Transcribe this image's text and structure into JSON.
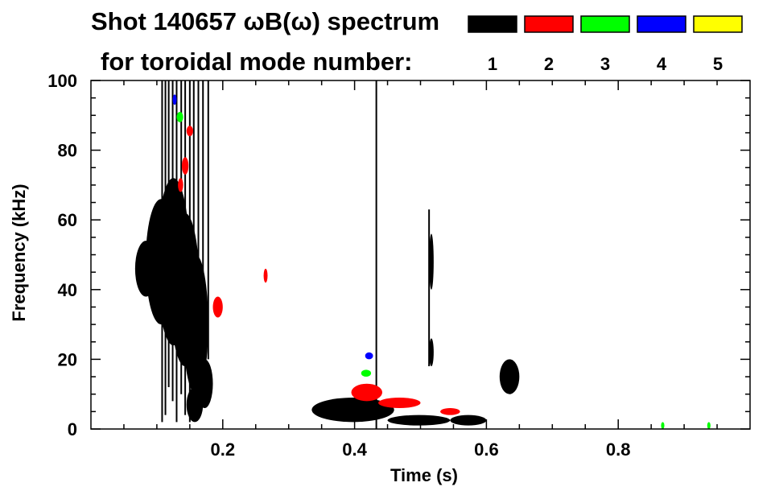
{
  "chart_data": {
    "type": "heatmap",
    "title_line1": "Shot 140657 ωB(ω) spectrum",
    "title_line2": "for toroidal mode number:",
    "xlabel": "Time (s)",
    "ylabel": "Frequency (kHz)",
    "xlim": [
      0.0,
      1.0
    ],
    "ylim": [
      0,
      100
    ],
    "xticks": [
      0.2,
      0.4,
      0.6,
      0.8
    ],
    "xtick_labels": [
      "0.2",
      "0.4",
      "0.6",
      "0.8"
    ],
    "yticks": [
      0,
      20,
      40,
      60,
      80,
      100
    ],
    "ytick_labels": [
      "0",
      "20",
      "40",
      "60",
      "80",
      "100"
    ],
    "grid": false,
    "legend_position": "top",
    "legend": [
      {
        "mode": "1",
        "color": "#000000"
      },
      {
        "mode": "2",
        "color": "#ff0000"
      },
      {
        "mode": "3",
        "color": "#00ff00"
      },
      {
        "mode": "4",
        "color": "#0000ff"
      },
      {
        "mode": "5",
        "color": "#ffff00"
      }
    ],
    "series": [
      {
        "mode": "1",
        "color": "#000000",
        "blobs": [
          {
            "t": [
              0.067,
              0.1
            ],
            "f": [
              38,
              54
            ]
          },
          {
            "t": [
              0.083,
              0.13
            ],
            "f": [
              30,
              66
            ]
          },
          {
            "t": [
              0.1,
              0.15
            ],
            "f": [
              24,
              72
            ]
          },
          {
            "t": [
              0.12,
              0.165
            ],
            "f": [
              18,
              62
            ]
          },
          {
            "t": [
              0.14,
              0.178
            ],
            "f": [
              10,
              50
            ]
          },
          {
            "t": [
              0.145,
              0.17
            ],
            "f": [
              2,
              12
            ]
          },
          {
            "t": [
              0.16,
              0.185
            ],
            "f": [
              6,
              20
            ]
          },
          {
            "t": [
              0.335,
              0.46
            ],
            "f": [
              2,
              9
            ]
          },
          {
            "t": [
              0.45,
              0.545
            ],
            "f": [
              1,
              4
            ]
          },
          {
            "t": [
              0.545,
              0.6
            ],
            "f": [
              1,
              4
            ]
          },
          {
            "t": [
              0.513,
              0.52
            ],
            "f": [
              40,
              56
            ]
          },
          {
            "t": [
              0.513,
              0.52
            ],
            "f": [
              18,
              26
            ]
          },
          {
            "t": [
              0.62,
              0.65
            ],
            "f": [
              10,
              20
            ]
          }
        ],
        "streaks": [
          {
            "t": 0.108,
            "f": [
              2,
              100
            ]
          },
          {
            "t": 0.113,
            "f": [
              4,
              100
            ]
          },
          {
            "t": 0.118,
            "f": [
              12,
              100
            ]
          },
          {
            "t": 0.124,
            "f": [
              8,
              100
            ]
          },
          {
            "t": 0.13,
            "f": [
              2,
              100
            ]
          },
          {
            "t": 0.137,
            "f": [
              10,
              100
            ]
          },
          {
            "t": 0.143,
            "f": [
              4,
              100
            ]
          },
          {
            "t": 0.15,
            "f": [
              2,
              100
            ]
          },
          {
            "t": 0.156,
            "f": [
              12,
              100
            ]
          },
          {
            "t": 0.163,
            "f": [
              4,
              100
            ]
          },
          {
            "t": 0.17,
            "f": [
              15,
              100
            ]
          },
          {
            "t": 0.178,
            "f": [
              20,
              100
            ]
          },
          {
            "t": 0.433,
            "f": [
              0,
              100
            ]
          },
          {
            "t": 0.513,
            "f": [
              18,
              63
            ]
          }
        ]
      },
      {
        "mode": "2",
        "color": "#ff0000",
        "blobs": [
          {
            "t": [
              0.395,
              0.442
            ],
            "f": [
              8,
              13
            ]
          },
          {
            "t": [
              0.436,
              0.5
            ],
            "f": [
              6,
              9
            ]
          },
          {
            "t": [
              0.53,
              0.56
            ],
            "f": [
              4,
              6
            ]
          },
          {
            "t": [
              0.145,
              0.155
            ],
            "f": [
              84,
              87
            ]
          },
          {
            "t": [
              0.138,
              0.148
            ],
            "f": [
              73,
              78
            ]
          },
          {
            "t": [
              0.132,
              0.14
            ],
            "f": [
              68,
              72
            ]
          },
          {
            "t": [
              0.185,
              0.2
            ],
            "f": [
              32,
              38
            ]
          },
          {
            "t": [
              0.262,
              0.268
            ],
            "f": [
              42,
              46
            ]
          }
        ],
        "streaks": []
      },
      {
        "mode": "3",
        "color": "#00ff00",
        "blobs": [
          {
            "t": [
              0.13,
              0.14
            ],
            "f": [
              88,
              91
            ]
          },
          {
            "t": [
              0.41,
              0.425
            ],
            "f": [
              15,
              17
            ]
          },
          {
            "t": [
              0.865,
              0.87
            ],
            "f": [
              0,
              2
            ]
          },
          {
            "t": [
              0.935,
              0.94
            ],
            "f": [
              0,
              2
            ]
          }
        ],
        "streaks": []
      },
      {
        "mode": "4",
        "color": "#0000ff",
        "blobs": [
          {
            "t": [
              0.416,
              0.428
            ],
            "f": [
              20,
              22
            ]
          },
          {
            "t": [
              0.124,
              0.13
            ],
            "f": [
              93,
              96
            ]
          }
        ],
        "streaks": []
      },
      {
        "mode": "5",
        "color": "#ffff00",
        "blobs": [],
        "streaks": []
      }
    ]
  }
}
